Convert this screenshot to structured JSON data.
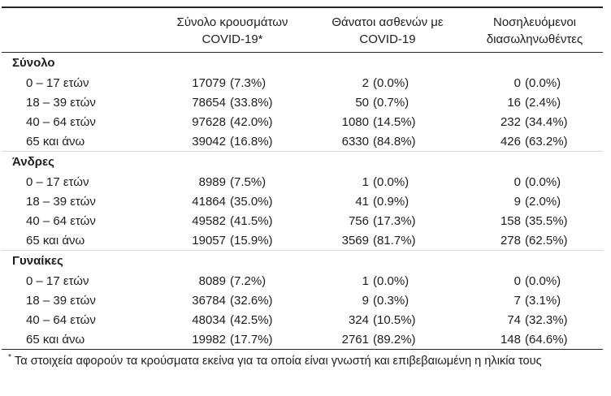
{
  "table": {
    "columns": [
      {
        "line1": "Σύνολο κρουσμάτων",
        "line2": "COVID-19*"
      },
      {
        "line1": "Θάνατοι ασθενών με",
        "line2": "COVID-19"
      },
      {
        "line1": "Νοσηλευόμενοι",
        "line2": "διασωληνωθέντες"
      }
    ],
    "sections": [
      {
        "label": "Σύνολο",
        "rows": [
          {
            "age": "0 – 17 ετών",
            "cases": "17079",
            "cases_pct": "(7.3%)",
            "deaths": "2",
            "deaths_pct": "(0.0%)",
            "intubated": "0",
            "intubated_pct": "(0.0%)"
          },
          {
            "age": "18 – 39 ετών",
            "cases": "78654",
            "cases_pct": "(33.8%)",
            "deaths": "50",
            "deaths_pct": "(0.7%)",
            "intubated": "16",
            "intubated_pct": "(2.4%)"
          },
          {
            "age": "40 – 64 ετών",
            "cases": "97628",
            "cases_pct": "(42.0%)",
            "deaths": "1080",
            "deaths_pct": "(14.5%)",
            "intubated": "232",
            "intubated_pct": "(34.4%)"
          },
          {
            "age": "65 και άνω",
            "cases": "39042",
            "cases_pct": "(16.8%)",
            "deaths": "6330",
            "deaths_pct": "(84.8%)",
            "intubated": "426",
            "intubated_pct": "(63.2%)"
          }
        ]
      },
      {
        "label": "Άνδρες",
        "rows": [
          {
            "age": "0 – 17 ετών",
            "cases": "8989",
            "cases_pct": "(7.5%)",
            "deaths": "1",
            "deaths_pct": "(0.0%)",
            "intubated": "0",
            "intubated_pct": "(0.0%)"
          },
          {
            "age": "18 – 39 ετών",
            "cases": "41864",
            "cases_pct": "(35.0%)",
            "deaths": "41",
            "deaths_pct": "(0.9%)",
            "intubated": "9",
            "intubated_pct": "(2.0%)"
          },
          {
            "age": "40 – 64 ετών",
            "cases": "49582",
            "cases_pct": "(41.5%)",
            "deaths": "756",
            "deaths_pct": "(17.3%)",
            "intubated": "158",
            "intubated_pct": "(35.5%)"
          },
          {
            "age": "65 και άνω",
            "cases": "19057",
            "cases_pct": "(15.9%)",
            "deaths": "3569",
            "deaths_pct": "(81.7%)",
            "intubated": "278",
            "intubated_pct": "(62.5%)"
          }
        ]
      },
      {
        "label": "Γυναίκες",
        "rows": [
          {
            "age": "0 – 17 ετών",
            "cases": "8089",
            "cases_pct": "(7.2%)",
            "deaths": "1",
            "deaths_pct": "(0.0%)",
            "intubated": "0",
            "intubated_pct": "(0.0%)"
          },
          {
            "age": "18 – 39 ετών",
            "cases": "36784",
            "cases_pct": "(32.6%)",
            "deaths": "9",
            "deaths_pct": "(0.3%)",
            "intubated": "7",
            "intubated_pct": "(3.1%)"
          },
          {
            "age": "40 – 64 ετών",
            "cases": "48034",
            "cases_pct": "(42.5%)",
            "deaths": "324",
            "deaths_pct": "(10.5%)",
            "intubated": "74",
            "intubated_pct": "(32.3%)"
          },
          {
            "age": "65 και άνω",
            "cases": "19982",
            "cases_pct": "(17.7%)",
            "deaths": "2761",
            "deaths_pct": "(89.2%)",
            "intubated": "148",
            "intubated_pct": "(64.6%)"
          }
        ]
      }
    ],
    "footnote": {
      "marker": "*",
      "text": "Τα στοιχεία αφορούν τα κρούσματα εκείνα για τα οποία είναι γνωστή και επιβεβαιωμένη η ηλικία τους"
    }
  },
  "colors": {
    "text": "#1d1d1d",
    "rule_dark": "#262626",
    "rule_light": "#d9d9d9",
    "background": "#ffffff"
  }
}
